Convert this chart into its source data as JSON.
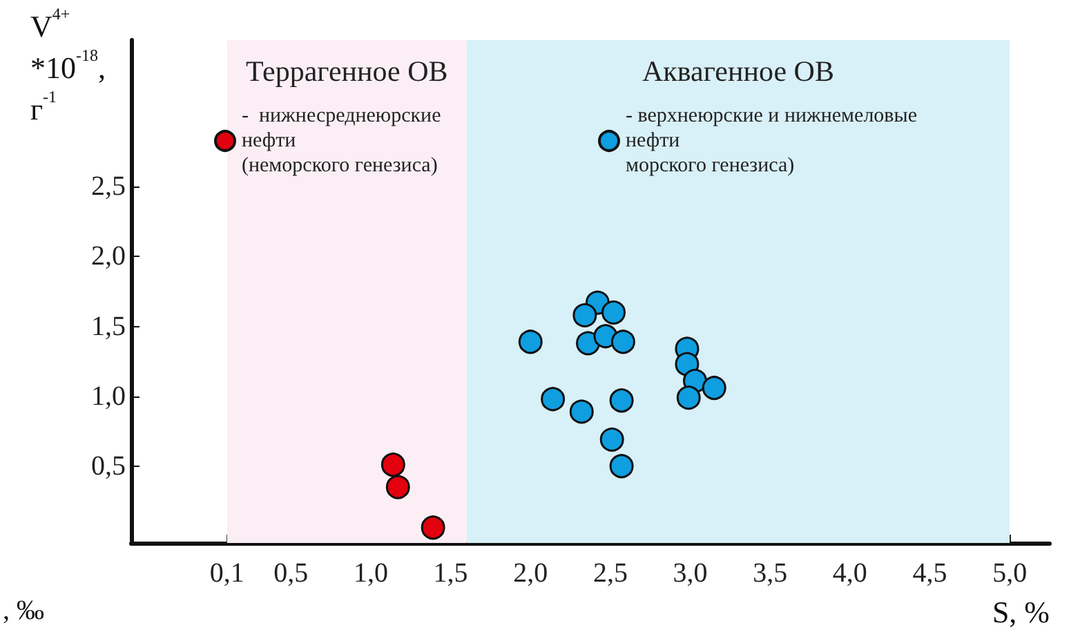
{
  "chart_data": {
    "type": "scatter",
    "xlabel": "S, %",
    "ylabel": "V$^{4+}$\n*10$^{-18}$,\nг$^{-1}$",
    "xlim": [
      -0.5,
      5.25
    ],
    "ylim": [
      -0.05,
      3.55
    ],
    "xticks": [
      {
        "value": 0.1,
        "label": "0,1"
      },
      {
        "value": 0.5,
        "label": "0,5"
      },
      {
        "value": 1.0,
        "label": "1,0"
      },
      {
        "value": 1.5,
        "label": "1,5"
      },
      {
        "value": 2.0,
        "label": "2,0"
      },
      {
        "value": 2.5,
        "label": "2,5"
      },
      {
        "value": 3.0,
        "label": "3,0"
      },
      {
        "value": 3.5,
        "label": "3,5"
      },
      {
        "value": 4.0,
        "label": "4,0"
      },
      {
        "value": 4.5,
        "label": "4,5"
      },
      {
        "value": 5.0,
        "label": "5,0"
      }
    ],
    "yticks": [
      {
        "value": 0.5,
        "label": "0,5"
      },
      {
        "value": 1.0,
        "label": "1,0"
      },
      {
        "value": 1.5,
        "label": "1,5"
      },
      {
        "value": 2.0,
        "label": "2,0"
      },
      {
        "value": 2.5,
        "label": "2,5"
      }
    ],
    "grid": false,
    "legend": "top",
    "marker": "circle",
    "bands": [
      {
        "axis": "x",
        "from": 0.1,
        "to": 1.6,
        "label": "Террагенное ОВ",
        "color": "#fbeff5"
      },
      {
        "axis": "x",
        "from": 1.6,
        "to": 5.0,
        "label": "Аквагенное ОВ",
        "color": "#d8f0f7"
      }
    ],
    "series": [
      {
        "name": "-  нижнесреднеюрские\nнефти\n(неморского генезиса)",
        "color": "#e3000f",
        "x": [
          1.14,
          1.17,
          1.39
        ],
        "values": [
          0.51,
          0.35,
          0.06
        ]
      },
      {
        "name": "- верхнеюрские и нижнемеловые\nнефти\nморского генезиса)",
        "color": "#0f9ee0",
        "x": [
          2.0,
          2.42,
          2.34,
          2.52,
          2.36,
          2.47,
          2.58,
          2.14,
          2.32,
          2.57,
          2.51,
          2.57,
          2.98,
          2.98,
          3.03,
          3.15,
          2.99
        ],
        "values": [
          1.39,
          1.67,
          1.58,
          1.6,
          1.38,
          1.43,
          1.39,
          0.98,
          0.89,
          0.97,
          0.69,
          0.5,
          1.34,
          1.23,
          1.11,
          1.06,
          0.99
        ]
      }
    ],
    "annotations": [
      ", ‰"
    ]
  }
}
